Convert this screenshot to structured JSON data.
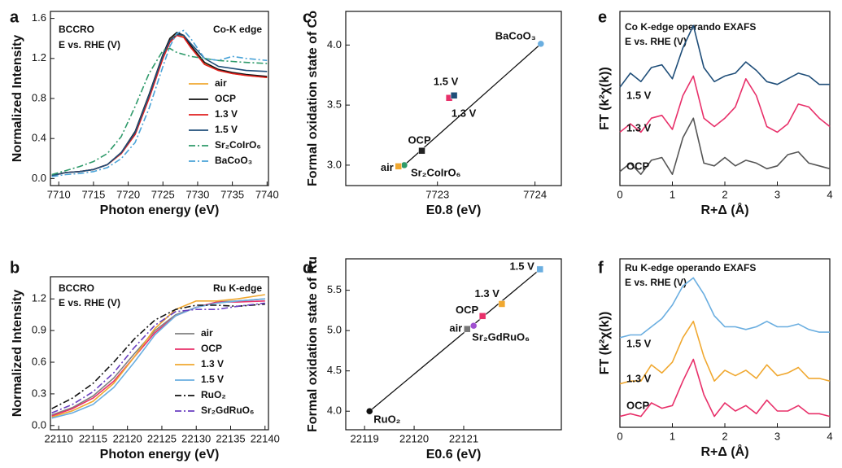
{
  "chart_data": [
    {
      "type": "line",
      "label": "a",
      "xlabel": "Photon energy (eV)",
      "ylabel": "Normalized Intensity",
      "annotations": [
        "BCCRO",
        "E vs. RHE (V)",
        "Co-K edge"
      ],
      "xlim": [
        7708.8,
        7740.2
      ],
      "xticks": [
        7710,
        7715,
        7720,
        7725,
        7730,
        7735,
        7740
      ],
      "ylim": [
        -0.07,
        1.67
      ],
      "yticks": [
        {
          "value": 0,
          "label": "0.0"
        },
        0.4,
        0.8,
        1.2,
        1.6
      ],
      "legend": "lower right",
      "x": [
        7709,
        7711,
        7713,
        7715,
        7717,
        7719,
        7721,
        7723,
        7725,
        7726,
        7727,
        7728,
        7729,
        7731,
        7733,
        7735,
        7737,
        7740
      ],
      "series": [
        {
          "name": "air",
          "color": "#f0a830",
          "style": "solid",
          "values": [
            0.03,
            0.06,
            0.07,
            0.09,
            0.14,
            0.25,
            0.45,
            0.82,
            1.22,
            1.38,
            1.45,
            1.42,
            1.32,
            1.15,
            1.08,
            1.05,
            1.03,
            1.01
          ]
        },
        {
          "name": "OCP",
          "color": "#111111",
          "style": "solid",
          "values": [
            0.03,
            0.06,
            0.07,
            0.09,
            0.14,
            0.26,
            0.47,
            0.84,
            1.24,
            1.4,
            1.46,
            1.43,
            1.33,
            1.16,
            1.09,
            1.06,
            1.04,
            1.02
          ]
        },
        {
          "name": "1.3 V",
          "color": "#e02020",
          "style": "solid",
          "values": [
            0.03,
            0.06,
            0.07,
            0.09,
            0.14,
            0.25,
            0.44,
            0.8,
            1.2,
            1.36,
            1.43,
            1.41,
            1.31,
            1.14,
            1.08,
            1.05,
            1.03,
            1.01
          ]
        },
        {
          "name": "1.5 V",
          "color": "#1f4e79",
          "style": "solid",
          "values": [
            0.03,
            0.06,
            0.07,
            0.09,
            0.14,
            0.26,
            0.46,
            0.83,
            1.23,
            1.38,
            1.44,
            1.43,
            1.35,
            1.2,
            1.12,
            1.1,
            1.08,
            1.07
          ]
        },
        {
          "name": "Sr₂CoIrO₆",
          "color": "#2e9a6a",
          "style": "dashdot",
          "values": [
            0.04,
            0.08,
            0.12,
            0.17,
            0.25,
            0.42,
            0.72,
            1.05,
            1.28,
            1.3,
            1.26,
            1.24,
            1.22,
            1.2,
            1.18,
            1.17,
            1.16,
            1.15
          ]
        },
        {
          "name": "BaCoO₃",
          "color": "#4aa3d8",
          "style": "dashdot",
          "values": [
            0.02,
            0.04,
            0.05,
            0.07,
            0.11,
            0.2,
            0.36,
            0.7,
            1.12,
            1.32,
            1.45,
            1.48,
            1.4,
            1.2,
            1.18,
            1.22,
            1.2,
            1.18
          ]
        }
      ]
    },
    {
      "type": "line",
      "label": "b",
      "xlabel": "Photon energy (eV)",
      "ylabel": "Normalized Intensity",
      "annotations": [
        "BCCRO",
        "E vs. RHE (V)",
        "Ru K-edge"
      ],
      "xlim": [
        22108.8,
        22140.5
      ],
      "xticks": [
        22110,
        22115,
        22120,
        22125,
        22130,
        22135,
        22140
      ],
      "ylim": [
        -0.04,
        1.41
      ],
      "yticks": [
        {
          "value": 0,
          "label": "0.0"
        },
        0.3,
        0.6,
        0.9,
        1.2
      ],
      "legend": "lower right",
      "x": [
        22109,
        22112,
        22115,
        22118,
        22121,
        22124,
        22127,
        22130,
        22133,
        22136,
        22140
      ],
      "series": [
        {
          "name": "air",
          "color": "#808080",
          "style": "solid",
          "values": [
            0.1,
            0.17,
            0.28,
            0.45,
            0.68,
            0.9,
            1.05,
            1.12,
            1.17,
            1.18,
            1.2
          ]
        },
        {
          "name": "OCP",
          "color": "#e8306a",
          "style": "solid",
          "values": [
            0.09,
            0.16,
            0.26,
            0.42,
            0.65,
            0.88,
            1.04,
            1.12,
            1.17,
            1.17,
            1.18
          ]
        },
        {
          "name": "1.3 V",
          "color": "#f0a830",
          "style": "solid",
          "values": [
            0.08,
            0.14,
            0.23,
            0.4,
            0.65,
            0.92,
            1.1,
            1.18,
            1.18,
            1.2,
            1.24
          ]
        },
        {
          "name": "1.5 V",
          "color": "#6aaee0",
          "style": "solid",
          "values": [
            0.07,
            0.12,
            0.2,
            0.36,
            0.6,
            0.86,
            1.04,
            1.12,
            1.16,
            1.18,
            1.2
          ]
        },
        {
          "name": "RuO₂",
          "color": "#111111",
          "style": "dashdot",
          "values": [
            0.16,
            0.26,
            0.4,
            0.6,
            0.82,
            1.0,
            1.1,
            1.14,
            1.14,
            1.13,
            1.15
          ]
        },
        {
          "name": "Sr₂GdRuO₆",
          "color": "#6a3fc0",
          "style": "dashdot",
          "values": [
            0.12,
            0.2,
            0.32,
            0.5,
            0.74,
            0.95,
            1.08,
            1.1,
            1.1,
            1.13,
            1.16
          ]
        }
      ]
    },
    {
      "type": "scatter",
      "label": "c",
      "xlabel": "E0.8 (eV)",
      "ylabel": "Formal oxidation state of Co",
      "xlim": [
        7722.06,
        7724.27
      ],
      "xticks": [
        7723,
        7724
      ],
      "ylim": [
        2.83,
        4.28
      ],
      "yticks": [
        {
          "value": 3,
          "label": "3.0"
        },
        3.5,
        {
          "value": 4,
          "label": "4.0"
        }
      ],
      "fit_line": true,
      "points": [
        {
          "name": "Sr₂CoIrO₆",
          "color": "#2e9a6a",
          "marker": "circle",
          "x": 7722.66,
          "y": 3.0
        },
        {
          "name": "air",
          "color": "#f0a830",
          "marker": "square",
          "x": 7722.6,
          "y": 2.99
        },
        {
          "name": "OCP",
          "color": "#222222",
          "marker": "square",
          "x": 7722.84,
          "y": 3.12
        },
        {
          "name": "1.3 V",
          "color": "#e8306a",
          "marker": "square",
          "x": 7723.12,
          "y": 3.56
        },
        {
          "name": "1.5 V",
          "color": "#1f4e79",
          "marker": "square",
          "x": 7723.17,
          "y": 3.58
        },
        {
          "name": "BaCoO₃",
          "color": "#6aaee0",
          "marker": "circle",
          "x": 7724.06,
          "y": 4.01
        }
      ]
    },
    {
      "type": "scatter",
      "label": "d",
      "xlabel": "E0.6 (eV)",
      "ylabel": "Formal oxidation state of Ru",
      "xlim": [
        22118.62,
        22122.97
      ],
      "xticks": [
        22119,
        22120,
        22121
      ],
      "ylim": [
        3.77,
        5.89
      ],
      "yticks": [
        {
          "value": 4,
          "label": "4.0"
        },
        4.5,
        {
          "value": 5,
          "label": "5.0"
        },
        5.5
      ],
      "fit_line": true,
      "points": [
        {
          "name": "RuO₂",
          "color": "#111111",
          "marker": "circle",
          "x": 22119.1,
          "y": 4.0
        },
        {
          "name": "air",
          "color": "#777777",
          "marker": "square",
          "x": 22121.07,
          "y": 5.02
        },
        {
          "name": "Sr₂GdRuO₆",
          "color": "#a050d0",
          "marker": "circle",
          "x": 22121.2,
          "y": 5.06
        },
        {
          "name": "OCP",
          "color": "#e8306a",
          "marker": "square",
          "x": 22121.38,
          "y": 5.18
        },
        {
          "name": "1.3 V",
          "color": "#f0a830",
          "marker": "square",
          "x": 22121.77,
          "y": 5.33
        },
        {
          "name": "1.5 V",
          "color": "#6aaee0",
          "marker": "square",
          "x": 22122.54,
          "y": 5.76
        }
      ]
    },
    {
      "type": "line",
      "label": "e",
      "xlabel": "R+Δ (Å)",
      "ylabel": "FT (k²χ(k))",
      "annotations": [
        "Co K-edge operando EXAFS",
        "E vs. RHE (V)"
      ],
      "xlim": [
        0,
        4
      ],
      "xticks": [
        0,
        1,
        2,
        3,
        4
      ],
      "ylim": [
        0.1,
        3.2
      ],
      "legend": "inline",
      "x": [
        0,
        0.2,
        0.4,
        0.6,
        0.8,
        1,
        1.2,
        1.4,
        1.6,
        1.8,
        2,
        2.2,
        2.4,
        2.6,
        2.8,
        3,
        3.2,
        3.4,
        3.6,
        3.8,
        4
      ],
      "series": [
        {
          "name": "1.5 V",
          "color": "#1f4e79",
          "style": "solid",
          "values": [
            1.85,
            2.1,
            1.95,
            2.2,
            2.25,
            2.0,
            2.55,
            2.95,
            2.2,
            1.95,
            2.05,
            2.1,
            2.3,
            2.15,
            1.95,
            1.9,
            2.0,
            2.1,
            2.05,
            1.9,
            1.9
          ]
        },
        {
          "name": "1.3 V",
          "color": "#e8306a",
          "style": "solid",
          "values": [
            1.05,
            1.2,
            1.05,
            1.3,
            1.35,
            1.1,
            1.7,
            2.05,
            1.3,
            1.15,
            1.3,
            1.5,
            2.0,
            1.7,
            1.15,
            1.05,
            1.2,
            1.55,
            1.5,
            1.3,
            1.15
          ]
        },
        {
          "name": "OCP",
          "color": "#555555",
          "style": "solid",
          "values": [
            0.35,
            0.5,
            0.3,
            0.55,
            0.6,
            0.3,
            0.95,
            1.3,
            0.5,
            0.45,
            0.6,
            0.45,
            0.55,
            0.5,
            0.4,
            0.45,
            0.65,
            0.7,
            0.5,
            0.45,
            0.4
          ]
        }
      ]
    },
    {
      "type": "line",
      "label": "f",
      "xlabel": "R+Δ (Å)",
      "ylabel": "FT (k²χ(k))",
      "annotations": [
        "Ru K-edge operando EXAFS",
        "E vs. RHE (V)"
      ],
      "xlim": [
        0,
        4
      ],
      "xticks": [
        0,
        1,
        2,
        3,
        4
      ],
      "ylim": [
        0.1,
        3.2
      ],
      "legend": "inline",
      "x": [
        0,
        0.2,
        0.4,
        0.6,
        0.8,
        1,
        1.2,
        1.4,
        1.6,
        1.8,
        2,
        2.2,
        2.4,
        2.6,
        2.8,
        3,
        3.2,
        3.4,
        3.6,
        3.8,
        4
      ],
      "series": [
        {
          "name": "1.5 V",
          "color": "#6aaee0",
          "style": "solid",
          "values": [
            1.75,
            1.8,
            1.8,
            1.95,
            2.1,
            2.35,
            2.7,
            2.85,
            2.55,
            2.15,
            1.95,
            1.95,
            1.9,
            1.95,
            2.05,
            1.95,
            1.95,
            2.0,
            1.9,
            1.85,
            1.85
          ]
        },
        {
          "name": "1.3 V",
          "color": "#f0a830",
          "style": "solid",
          "values": [
            0.9,
            0.95,
            0.95,
            1.25,
            1.1,
            1.3,
            1.75,
            2.05,
            1.4,
            0.95,
            1.15,
            1.05,
            1.15,
            1.0,
            1.25,
            1.05,
            1.1,
            1.2,
            1.0,
            1.0,
            0.95
          ]
        },
        {
          "name": "OCP",
          "color": "#e8306a",
          "style": "solid",
          "values": [
            0.3,
            0.35,
            0.3,
            0.55,
            0.45,
            0.5,
            0.95,
            1.35,
            0.7,
            0.3,
            0.55,
            0.4,
            0.5,
            0.35,
            0.6,
            0.4,
            0.4,
            0.5,
            0.35,
            0.35,
            0.3
          ]
        }
      ]
    }
  ]
}
